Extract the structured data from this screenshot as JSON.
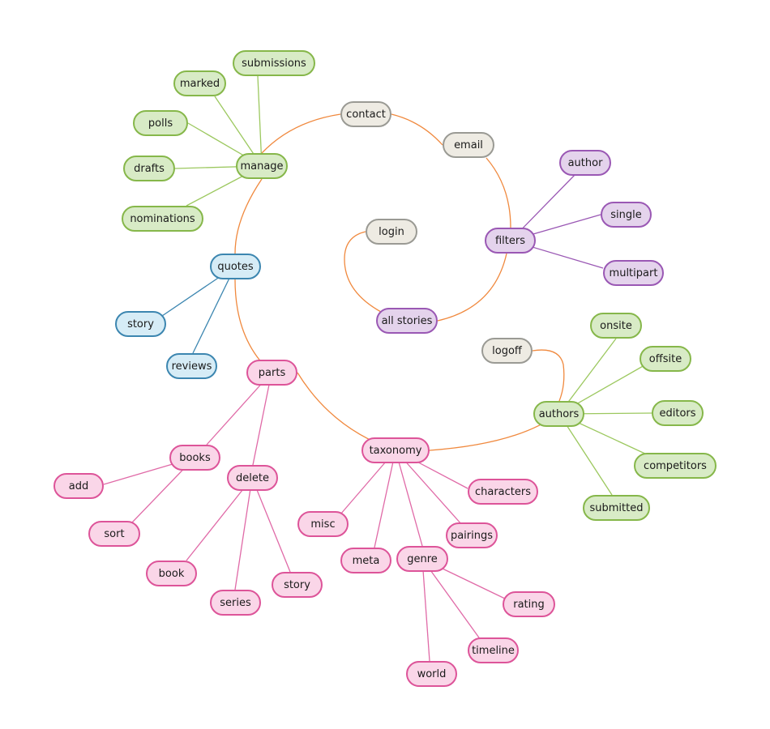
{
  "colors": {
    "orange_edge": "#f0893e",
    "green_edge": "#9cc85f",
    "purple_edge": "#9a58b4",
    "blue_edge": "#3c86b0",
    "pink_edge": "#e06aa7"
  },
  "nodes": {
    "submissions": "submissions",
    "marked": "marked",
    "contact": "contact",
    "polls": "polls",
    "email": "email",
    "author": "author",
    "manage": "manage",
    "drafts": "drafts",
    "single": "single",
    "nominations": "nominations",
    "login": "login",
    "filters": "filters",
    "quotes": "quotes",
    "multipart": "multipart",
    "all_stories": "all stories",
    "story_quotes": "story",
    "onsite": "onsite",
    "logoff": "logoff",
    "offsite": "offsite",
    "reviews": "reviews",
    "parts": "parts",
    "authors": "authors",
    "editors": "editors",
    "taxonomy": "taxonomy",
    "books": "books",
    "competitors": "competitors",
    "delete": "delete",
    "add": "add",
    "characters": "characters",
    "submitted": "submitted",
    "misc": "misc",
    "sort": "sort",
    "pairings": "pairings",
    "meta": "meta",
    "genre": "genre",
    "book": "book",
    "story_parts": "story",
    "series": "series",
    "rating": "rating",
    "timeline": "timeline",
    "world": "world"
  }
}
